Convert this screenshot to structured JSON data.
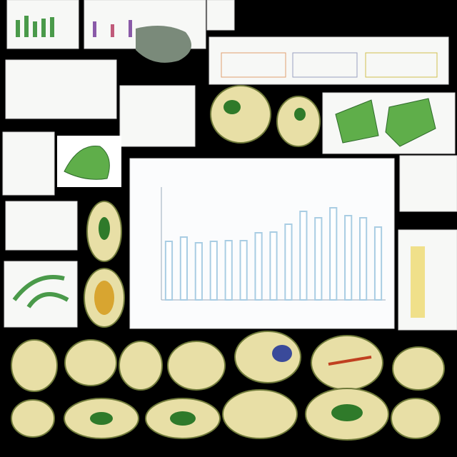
{
  "center_chart": {
    "type": "bar",
    "values": [
      82,
      88,
      80,
      82,
      83,
      83,
      94,
      95,
      106,
      124,
      115,
      129,
      118,
      115,
      102
    ],
    "ylim": [
      0,
      170
    ],
    "color": "#a9cde3"
  }
}
